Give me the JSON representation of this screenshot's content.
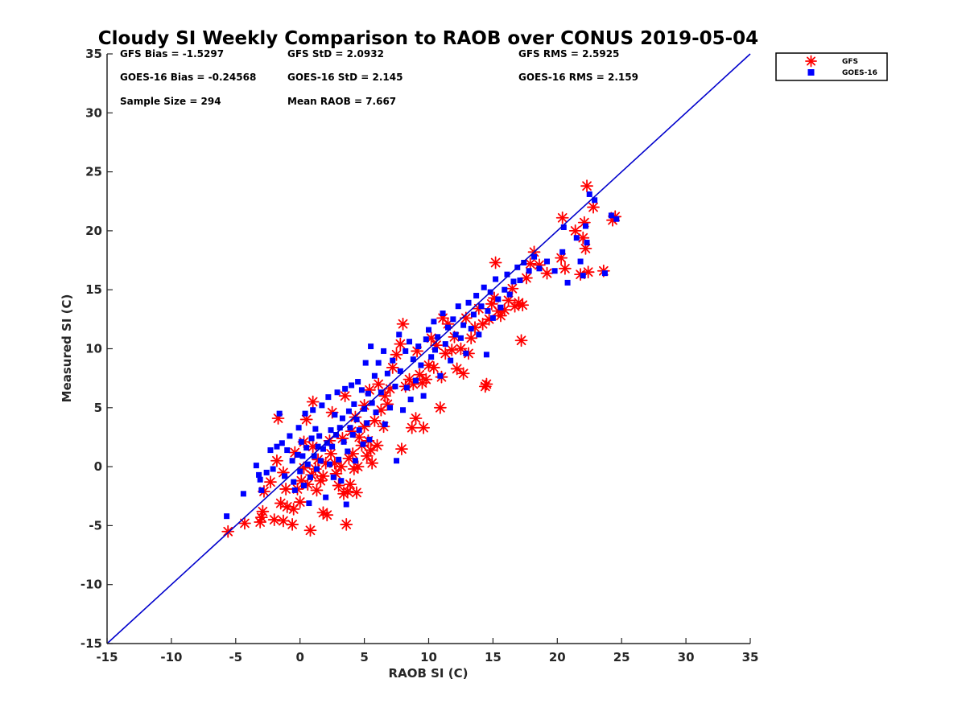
{
  "chart_data": {
    "type": "scatter",
    "title": "Cloudy SI Weekly Comparison to RAOB over CONUS 2019-05-04",
    "xlabel": "RAOB SI (C)",
    "ylabel": "Measured SI (C)",
    "xlim": [
      -15,
      35
    ],
    "ylim": [
      -15,
      35
    ],
    "x_ticks": [
      -15,
      -10,
      -5,
      0,
      5,
      10,
      15,
      20,
      25,
      30,
      35
    ],
    "y_ticks": [
      -15,
      -10,
      -5,
      0,
      5,
      10,
      15,
      20,
      25,
      30,
      35
    ],
    "grid": false,
    "legend_position": "outside-top-right",
    "reference_line": {
      "from": [
        -15,
        -15
      ],
      "to": [
        35,
        35
      ],
      "color": "#0000cc"
    },
    "stats": {
      "gfs_bias": "GFS Bias = -1.5297",
      "gfs_std": "GFS StD = 2.0932",
      "gfs_rms": "GFS RMS = 2.5925",
      "goes_bias": "GOES-16 Bias = -0.24568",
      "goes_std": "GOES-16 StD = 2.145",
      "goes_rms": "GOES-16 RMS = 2.159",
      "sample_size": "Sample Size = 294",
      "mean_raob": "Mean RAOB = 7.667"
    },
    "series": [
      {
        "name": "GFS",
        "marker": "asterisk",
        "color": "#ff0000",
        "points": [
          [
            -5.6,
            -5.5
          ],
          [
            -4.3,
            -4.8
          ],
          [
            -3.1,
            -4.7
          ],
          [
            -3.0,
            -4.3
          ],
          [
            -2.9,
            -3.8
          ],
          [
            -2.8,
            -2.1
          ],
          [
            -2.3,
            -1.3
          ],
          [
            -2.0,
            -4.5
          ],
          [
            -1.8,
            0.5
          ],
          [
            -1.7,
            4.1
          ],
          [
            -1.5,
            -3.1
          ],
          [
            -1.3,
            -4.6
          ],
          [
            -1.3,
            -0.5
          ],
          [
            -1.1,
            -1.9
          ],
          [
            -1.0,
            -3.4
          ],
          [
            -0.6,
            -4.9
          ],
          [
            -0.5,
            -3.6
          ],
          [
            -0.4,
            1.2
          ],
          [
            -0.2,
            -1.9
          ],
          [
            0.0,
            -3.0
          ],
          [
            0.1,
            -1.2
          ],
          [
            0.3,
            -0.1
          ],
          [
            0.3,
            2.1
          ],
          [
            0.5,
            4.0
          ],
          [
            0.6,
            -1.5
          ],
          [
            0.8,
            -5.4
          ],
          [
            0.9,
            -0.7
          ],
          [
            1.0,
            1.7
          ],
          [
            1.0,
            5.5
          ],
          [
            1.2,
            -0.2
          ],
          [
            1.3,
            -2.0
          ],
          [
            1.4,
            0.6
          ],
          [
            1.6,
            -1.2
          ],
          [
            1.8,
            -3.9
          ],
          [
            1.8,
            -0.8
          ],
          [
            2.0,
            0.3
          ],
          [
            2.1,
            -4.1
          ],
          [
            2.3,
            2.2
          ],
          [
            2.4,
            1.1
          ],
          [
            2.5,
            4.6
          ],
          [
            2.7,
            0.3
          ],
          [
            2.8,
            -0.6
          ],
          [
            3.0,
            -1.6
          ],
          [
            3.2,
            0.0
          ],
          [
            3.3,
            2.4
          ],
          [
            3.4,
            -2.3
          ],
          [
            3.5,
            6.0
          ],
          [
            3.6,
            -4.9
          ],
          [
            3.7,
            -2.1
          ],
          [
            3.8,
            0.7
          ],
          [
            3.9,
            -1.5
          ],
          [
            4.0,
            3.0
          ],
          [
            4.1,
            1.1
          ],
          [
            4.2,
            -0.2
          ],
          [
            4.3,
            4.2
          ],
          [
            4.4,
            -2.2
          ],
          [
            4.5,
            0.0
          ],
          [
            4.6,
            2.5
          ],
          [
            4.8,
            1.8
          ],
          [
            5.0,
            5.2
          ],
          [
            5.0,
            3.4
          ],
          [
            5.2,
            0.9
          ],
          [
            5.3,
            2.2
          ],
          [
            5.4,
            6.5
          ],
          [
            5.5,
            1.4
          ],
          [
            5.6,
            0.3
          ],
          [
            5.8,
            3.9
          ],
          [
            6.0,
            1.8
          ],
          [
            6.1,
            7.0
          ],
          [
            6.3,
            4.8
          ],
          [
            6.5,
            3.4
          ],
          [
            6.6,
            6.0
          ],
          [
            6.8,
            5.3
          ],
          [
            7.0,
            6.6
          ],
          [
            7.2,
            8.4
          ],
          [
            7.5,
            9.5
          ],
          [
            7.8,
            10.4
          ],
          [
            7.9,
            1.5
          ],
          [
            8.0,
            12.1
          ],
          [
            8.2,
            6.8
          ],
          [
            8.5,
            7.4
          ],
          [
            8.7,
            3.3
          ],
          [
            8.8,
            7.0
          ],
          [
            9.0,
            4.1
          ],
          [
            9.1,
            9.8
          ],
          [
            9.3,
            7.8
          ],
          [
            9.5,
            7.1
          ],
          [
            9.6,
            3.3
          ],
          [
            9.8,
            7.4
          ],
          [
            10.0,
            8.6
          ],
          [
            10.2,
            10.9
          ],
          [
            10.4,
            8.4
          ],
          [
            10.6,
            10.3
          ],
          [
            10.9,
            5.0
          ],
          [
            11.0,
            7.6
          ],
          [
            11.1,
            12.6
          ],
          [
            11.3,
            9.6
          ],
          [
            11.5,
            12.1
          ],
          [
            11.8,
            9.9
          ],
          [
            12.0,
            11.0
          ],
          [
            12.2,
            8.3
          ],
          [
            12.5,
            10.0
          ],
          [
            12.7,
            7.9
          ],
          [
            12.9,
            12.6
          ],
          [
            13.1,
            9.6
          ],
          [
            13.3,
            10.9
          ],
          [
            13.6,
            11.8
          ],
          [
            13.9,
            13.4
          ],
          [
            14.2,
            12.1
          ],
          [
            14.4,
            6.8
          ],
          [
            14.5,
            7.0
          ],
          [
            14.7,
            12.5
          ],
          [
            14.9,
            13.8
          ],
          [
            15.1,
            14.3
          ],
          [
            15.2,
            17.3
          ],
          [
            15.4,
            13.2
          ],
          [
            15.6,
            12.8
          ],
          [
            15.9,
            13.3
          ],
          [
            16.2,
            14.1
          ],
          [
            16.5,
            15.1
          ],
          [
            16.7,
            13.6
          ],
          [
            17.0,
            13.9
          ],
          [
            17.2,
            10.7
          ],
          [
            17.3,
            13.7
          ],
          [
            17.6,
            16.0
          ],
          [
            17.9,
            17.2
          ],
          [
            18.2,
            18.2
          ],
          [
            18.6,
            17.1
          ],
          [
            19.2,
            16.4
          ],
          [
            20.3,
            17.7
          ],
          [
            20.4,
            21.1
          ],
          [
            20.6,
            16.8
          ],
          [
            21.4,
            20.0
          ],
          [
            21.8,
            16.3
          ],
          [
            22.0,
            19.4
          ],
          [
            22.1,
            20.7
          ],
          [
            22.2,
            18.5
          ],
          [
            22.3,
            23.8
          ],
          [
            22.4,
            16.5
          ],
          [
            22.8,
            22.0
          ],
          [
            23.6,
            16.6
          ],
          [
            24.3,
            20.9
          ],
          [
            24.5,
            21.2
          ]
        ]
      },
      {
        "name": "GOES-16",
        "marker": "square",
        "color": "#0000ff",
        "points": [
          [
            -5.7,
            -4.2
          ],
          [
            -4.4,
            -2.3
          ],
          [
            -3.4,
            0.1
          ],
          [
            -3.2,
            -0.7
          ],
          [
            -3.1,
            -1.1
          ],
          [
            -3.0,
            -2.0
          ],
          [
            -2.6,
            -0.5
          ],
          [
            -2.3,
            1.4
          ],
          [
            -2.1,
            -0.2
          ],
          [
            -1.8,
            1.7
          ],
          [
            -1.6,
            4.5
          ],
          [
            -1.4,
            2.0
          ],
          [
            -1.2,
            -0.8
          ],
          [
            -1.0,
            1.4
          ],
          [
            -0.8,
            2.6
          ],
          [
            -0.6,
            0.5
          ],
          [
            -0.5,
            -1.3
          ],
          [
            -0.4,
            -2.0
          ],
          [
            -0.2,
            1.0
          ],
          [
            -0.1,
            3.3
          ],
          [
            0.0,
            -0.4
          ],
          [
            0.1,
            2.1
          ],
          [
            0.2,
            0.9
          ],
          [
            0.3,
            -1.6
          ],
          [
            0.4,
            4.5
          ],
          [
            0.5,
            1.6
          ],
          [
            0.6,
            0.2
          ],
          [
            0.7,
            -3.1
          ],
          [
            0.8,
            -0.9
          ],
          [
            0.9,
            2.4
          ],
          [
            1.0,
            4.8
          ],
          [
            1.1,
            0.9
          ],
          [
            1.2,
            3.2
          ],
          [
            1.3,
            -0.2
          ],
          [
            1.4,
            1.7
          ],
          [
            1.5,
            2.6
          ],
          [
            1.6,
            0.5
          ],
          [
            1.7,
            5.2
          ],
          [
            1.8,
            1.5
          ],
          [
            2.0,
            -2.6
          ],
          [
            2.1,
            2.0
          ],
          [
            2.2,
            5.9
          ],
          [
            2.3,
            0.2
          ],
          [
            2.4,
            3.1
          ],
          [
            2.5,
            1.7
          ],
          [
            2.6,
            -0.9
          ],
          [
            2.7,
            4.4
          ],
          [
            2.8,
            2.7
          ],
          [
            2.9,
            6.3
          ],
          [
            3.0,
            0.6
          ],
          [
            3.1,
            3.3
          ],
          [
            3.2,
            -1.2
          ],
          [
            3.3,
            4.1
          ],
          [
            3.4,
            2.1
          ],
          [
            3.5,
            6.6
          ],
          [
            3.6,
            -3.2
          ],
          [
            3.7,
            1.3
          ],
          [
            3.8,
            4.7
          ],
          [
            3.9,
            3.3
          ],
          [
            4.0,
            6.9
          ],
          [
            4.1,
            2.7
          ],
          [
            4.2,
            5.3
          ],
          [
            4.3,
            0.5
          ],
          [
            4.4,
            4.0
          ],
          [
            4.5,
            7.2
          ],
          [
            4.6,
            3.1
          ],
          [
            4.8,
            6.5
          ],
          [
            4.9,
            1.9
          ],
          [
            5.0,
            4.9
          ],
          [
            5.1,
            8.8
          ],
          [
            5.2,
            3.7
          ],
          [
            5.3,
            6.2
          ],
          [
            5.4,
            2.3
          ],
          [
            5.5,
            10.2
          ],
          [
            5.6,
            5.4
          ],
          [
            5.8,
            7.7
          ],
          [
            5.9,
            4.6
          ],
          [
            6.1,
            8.8
          ],
          [
            6.3,
            6.3
          ],
          [
            6.5,
            9.8
          ],
          [
            6.6,
            3.6
          ],
          [
            6.8,
            7.9
          ],
          [
            7.0,
            5.0
          ],
          [
            7.2,
            9.0
          ],
          [
            7.4,
            6.8
          ],
          [
            7.5,
            0.5
          ],
          [
            7.7,
            11.2
          ],
          [
            7.8,
            8.1
          ],
          [
            8.0,
            4.8
          ],
          [
            8.2,
            9.8
          ],
          [
            8.3,
            6.7
          ],
          [
            8.5,
            10.6
          ],
          [
            8.6,
            5.7
          ],
          [
            8.8,
            9.1
          ],
          [
            9.0,
            7.3
          ],
          [
            9.2,
            10.2
          ],
          [
            9.4,
            8.6
          ],
          [
            9.6,
            6.0
          ],
          [
            9.8,
            10.8
          ],
          [
            10.0,
            11.6
          ],
          [
            10.2,
            9.3
          ],
          [
            10.4,
            12.3
          ],
          [
            10.5,
            9.9
          ],
          [
            10.7,
            11.0
          ],
          [
            10.9,
            7.7
          ],
          [
            11.1,
            13.0
          ],
          [
            11.3,
            10.4
          ],
          [
            11.5,
            11.8
          ],
          [
            11.7,
            9.0
          ],
          [
            11.9,
            12.5
          ],
          [
            12.1,
            11.2
          ],
          [
            12.3,
            13.6
          ],
          [
            12.5,
            10.9
          ],
          [
            12.7,
            12.0
          ],
          [
            12.9,
            9.6
          ],
          [
            13.1,
            13.9
          ],
          [
            13.3,
            11.7
          ],
          [
            13.5,
            12.9
          ],
          [
            13.7,
            14.5
          ],
          [
            13.9,
            11.2
          ],
          [
            14.1,
            13.6
          ],
          [
            14.3,
            15.2
          ],
          [
            14.5,
            9.5
          ],
          [
            14.6,
            13.2
          ],
          [
            14.8,
            14.8
          ],
          [
            15.0,
            12.6
          ],
          [
            15.2,
            15.9
          ],
          [
            15.4,
            14.2
          ],
          [
            15.6,
            13.5
          ],
          [
            15.9,
            15.0
          ],
          [
            16.1,
            16.3
          ],
          [
            16.3,
            14.6
          ],
          [
            16.6,
            15.7
          ],
          [
            16.9,
            16.9
          ],
          [
            17.1,
            15.8
          ],
          [
            17.4,
            17.3
          ],
          [
            17.8,
            16.6
          ],
          [
            18.2,
            17.8
          ],
          [
            18.6,
            16.8
          ],
          [
            19.2,
            17.4
          ],
          [
            19.8,
            16.6
          ],
          [
            20.4,
            18.2
          ],
          [
            20.5,
            20.3
          ],
          [
            20.8,
            15.6
          ],
          [
            21.5,
            19.4
          ],
          [
            21.8,
            17.4
          ],
          [
            22.0,
            16.2
          ],
          [
            22.2,
            20.4
          ],
          [
            22.3,
            19.0
          ],
          [
            22.5,
            23.1
          ],
          [
            22.9,
            22.6
          ],
          [
            23.7,
            16.4
          ],
          [
            24.2,
            21.3
          ],
          [
            24.6,
            21.0
          ]
        ]
      }
    ]
  }
}
